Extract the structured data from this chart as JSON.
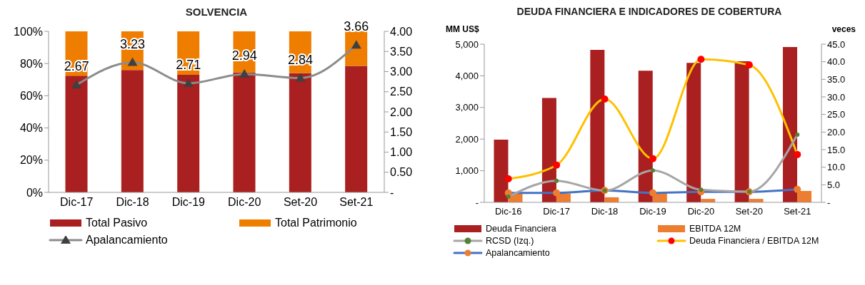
{
  "chart_data": [
    {
      "type": "bar",
      "title": "SOLVENCIA",
      "stacked": true,
      "categories": [
        "Dic-17",
        "Dic-18",
        "Dic-19",
        "Dic-20",
        "Set-20",
        "Set-21"
      ],
      "series": [
        {
          "name": "Total Pasivo",
          "color": "#aa1f1f",
          "values": [
            72.5,
            76,
            73,
            74.5,
            74,
            78.5
          ]
        },
        {
          "name": "Total Patrimonio",
          "color": "#ef7d00",
          "values": [
            27.5,
            24,
            27,
            25.5,
            26,
            21.5
          ]
        },
        {
          "name": "Apalancamiento",
          "type": "line",
          "axis": "y2",
          "color": "#8c8c8c",
          "colors": [
            "#404040",
            "#404040",
            "#404040",
            "#404040",
            "#404040",
            "#404040"
          ],
          "marker": "triangle",
          "values": [
            2.67,
            3.23,
            2.71,
            2.94,
            2.84,
            3.66
          ],
          "value_labels": [
            "2.67",
            "3.23",
            "2.71",
            "2.94",
            "2.84",
            "3.66"
          ]
        }
      ],
      "ylim": [
        0,
        100
      ],
      "yticks": [
        {
          "value": 0,
          "label": "0%"
        },
        {
          "value": 20,
          "label": "20%"
        },
        {
          "value": 40,
          "label": "40%"
        },
        {
          "value": 60,
          "label": "60%"
        },
        {
          "value": 80,
          "label": "80%"
        },
        {
          "value": 100,
          "label": "100%"
        }
      ],
      "y2lim": [
        0,
        4
      ],
      "y2ticks": [
        {
          "value": 0,
          "label": "-"
        },
        {
          "value": 0.5,
          "label": "0.50"
        },
        {
          "value": 1,
          "label": "1.00"
        },
        {
          "value": 1.5,
          "label": "1.50"
        },
        {
          "value": 2,
          "label": "2.00"
        },
        {
          "value": 2.5,
          "label": "2.50"
        },
        {
          "value": 3,
          "label": "3.00"
        },
        {
          "value": 3.5,
          "label": "3.50"
        },
        {
          "value": 4,
          "label": "4.00"
        }
      ],
      "grid": false,
      "legend": "bottom"
    },
    {
      "type": "bar",
      "title": "DEUDA FINANCIERA E INDICADORES DE COBERTURA",
      "ylabel": "MM US$",
      "y2label": "veces",
      "categories": [
        "Dic-16",
        "Dic-17",
        "Dic-18",
        "Dic-19",
        "Dic-20",
        "Set-20",
        "Set-21"
      ],
      "series": [
        {
          "name": "Deuda Financiera",
          "color": "#aa1f1f",
          "values": [
            1980,
            3300,
            4820,
            4160,
            4410,
            4460,
            4910
          ]
        },
        {
          "name": "EBITDA 12M",
          "color": "#ed7d31",
          "values": [
            290,
            280,
            160,
            300,
            110,
            110,
            360
          ]
        },
        {
          "name": "RCSD (Izq.)",
          "type": "line",
          "color": "#a6a6a6",
          "colors": [
            "#548235",
            "#548235",
            "#548235",
            "#548235",
            "#548235",
            "#548235",
            "#548235"
          ],
          "marker": "circle",
          "values": [
            180,
            680,
            370,
            1010,
            400,
            340,
            2140
          ]
        },
        {
          "name": "Deuda Financiera / EBITDA 12M",
          "type": "line",
          "axis": "y2",
          "color": "#ffc000",
          "colors": [
            "#ff0000",
            "#ff0000",
            "#ff0000",
            "#ff0000",
            "#ff0000",
            "#ff0000",
            "#ff0000"
          ],
          "marker": "circle",
          "values": [
            6.7,
            10.6,
            29.4,
            12.4,
            40.7,
            39.1,
            13.6
          ]
        },
        {
          "name": "Apalancamiento",
          "type": "line",
          "axis": "y2",
          "color": "#4472c4",
          "colors": [
            "#ed7d31",
            "#ed7d31",
            "#ed7d31",
            "#ed7d31",
            "#ed7d31",
            "#ed7d31",
            "#ed7d31"
          ],
          "marker": "circle",
          "values": [
            2.7,
            2.7,
            3.4,
            2.7,
            3.0,
            3.0,
            3.7
          ]
        }
      ],
      "ylim": [
        0,
        5000
      ],
      "yticks": [
        {
          "value": 0,
          "label": "-"
        },
        {
          "value": 1000,
          "label": "1,000"
        },
        {
          "value": 2000,
          "label": "2,000"
        },
        {
          "value": 3000,
          "label": "3,000"
        },
        {
          "value": 4000,
          "label": "4,000"
        },
        {
          "value": 5000,
          "label": "5,000"
        }
      ],
      "y2lim": [
        0,
        45
      ],
      "y2ticks": [
        {
          "value": 0,
          "label": "-"
        },
        {
          "value": 5,
          "label": "5.0"
        },
        {
          "value": 10,
          "label": "10.0"
        },
        {
          "value": 15,
          "label": "15.0"
        },
        {
          "value": 20,
          "label": "20.0"
        },
        {
          "value": 25,
          "label": "25.0"
        },
        {
          "value": 30,
          "label": "30.0"
        },
        {
          "value": 35,
          "label": "35.0"
        },
        {
          "value": 40,
          "label": "40.0"
        },
        {
          "value": 45,
          "label": "45.0"
        }
      ],
      "grid": false,
      "legend": "bottom"
    }
  ]
}
